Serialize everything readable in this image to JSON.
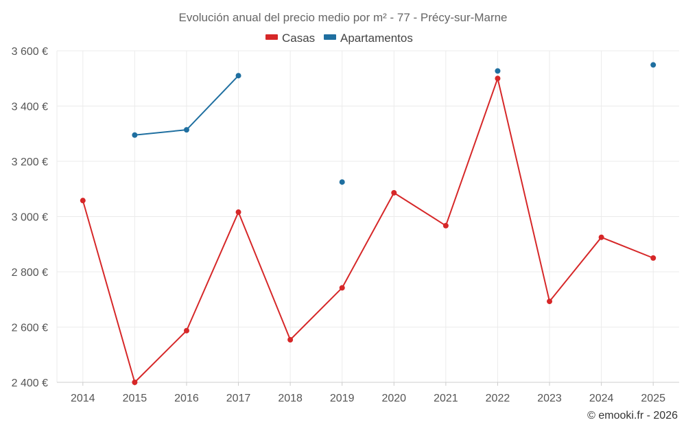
{
  "chart_data": {
    "type": "line",
    "title": "Evolución anual del precio medio por m² - 77 - Précy-sur-Marne",
    "categories": [
      "2014",
      "2015",
      "2016",
      "2017",
      "2018",
      "2019",
      "2020",
      "2021",
      "2022",
      "2023",
      "2024",
      "2025"
    ],
    "ylim": [
      2400,
      3600
    ],
    "yticks": [
      2400,
      2600,
      2800,
      3000,
      3200,
      3400,
      3600
    ],
    "ytick_labels": [
      "2 400 €",
      "2 600 €",
      "2 800 €",
      "3 000 €",
      "3 200 €",
      "3 400 €",
      "3 600 €"
    ],
    "xlabel": "",
    "ylabel": "",
    "grid": true,
    "legend_position": "top-center",
    "series": [
      {
        "name": "Casas",
        "color": "#d62728",
        "values": [
          3058,
          2400,
          2587,
          3016,
          2554,
          2742,
          3086,
          2967,
          3500,
          2693,
          2925,
          2850
        ]
      },
      {
        "name": "Apartamentos",
        "color": "#1f6fa0",
        "values": [
          null,
          3295,
          3314,
          3510,
          null,
          3125,
          null,
          null,
          3527,
          null,
          null,
          3549
        ]
      }
    ]
  },
  "credit": "© emooki.fr - 2026"
}
